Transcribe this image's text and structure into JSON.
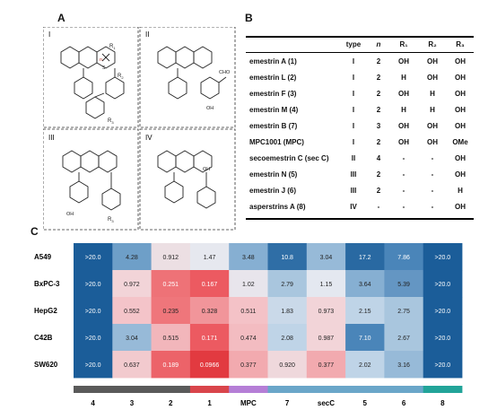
{
  "panel_labels": {
    "a": "A",
    "b": "B",
    "c": "C"
  },
  "panel_a": {
    "box_labels": [
      "I",
      "II",
      "III",
      "IV"
    ],
    "substituent_labels": {
      "r1": "R",
      "r1_sub": "1",
      "r2": "R",
      "r2_sub": "2",
      "r3": "R",
      "r3_sub": "3",
      "n": "n",
      "s": "S",
      "aldehyde": "CHO",
      "hydroxyl": "OH",
      "oh": "OH"
    }
  },
  "panel_b": {
    "headers": {
      "type": "type",
      "n": "n",
      "r1": "R₁",
      "r2": "R₂",
      "r3": "R₃"
    },
    "rows": [
      {
        "name": "emestrin A (1)",
        "type": "I",
        "n": "2",
        "r1": "OH",
        "r2": "OH",
        "r3": "OH"
      },
      {
        "name": "emestrin L (2)",
        "type": "I",
        "n": "2",
        "r1": "H",
        "r2": "OH",
        "r3": "OH"
      },
      {
        "name": "emestrin F (3)",
        "type": "I",
        "n": "2",
        "r1": "OH",
        "r2": "H",
        "r3": "OH"
      },
      {
        "name": "emestrin M (4)",
        "type": "I",
        "n": "2",
        "r1": "H",
        "r2": "H",
        "r3": "OH"
      },
      {
        "name": "emestrin B (7)",
        "type": "I",
        "n": "3",
        "r1": "OH",
        "r2": "OH",
        "r3": "OH"
      },
      {
        "name": "MPC1001 (MPC)",
        "type": "I",
        "n": "2",
        "r1": "OH",
        "r2": "OH",
        "r3": "OMe"
      },
      {
        "name": "secoemestrin C (sec C)",
        "type": "II",
        "n": "4",
        "r1": "-",
        "r2": "-",
        "r3": "OH"
      },
      {
        "name": "emestrin N (5)",
        "type": "III",
        "n": "2",
        "r1": "-",
        "r2": "-",
        "r3": "OH"
      },
      {
        "name": "emestrin J (6)",
        "type": "III",
        "n": "2",
        "r1": "-",
        "r2": "-",
        "r3": "H"
      },
      {
        "name": "asperstrins A (8)",
        "type": "IV",
        "n": "-",
        "r1": "-",
        "r2": "-",
        "r3": "OH"
      }
    ]
  },
  "colors": {
    "dark_blue": "#1b5d99",
    "mid_blue": "#5e98c4",
    "light_blue": "#b2cde2",
    "pale": "#ecdfe3",
    "pink": "#f5c4c8",
    "red": "#ed5a5f",
    "deep_red": "#e23a40",
    "bar_gray": "#5a5a5a",
    "bar_red": "#d9454b",
    "bar_purple": "#b57ed6",
    "bar_blue": "#6aa6c9",
    "bar_teal": "#22a499"
  },
  "chart_data": {
    "type": "heatmap",
    "title": "",
    "rows": [
      "A549",
      "BxPC-3",
      "HepG2",
      "C42B",
      "SW620"
    ],
    "columns": [
      "4",
      "3",
      "2",
      "1",
      "MPC",
      "7",
      "secC",
      "5",
      "6",
      "8"
    ],
    "values": [
      [
        ">20.0",
        "4.28",
        "0.912",
        "1.47",
        "3.48",
        "10.8",
        "3.04",
        "17.2",
        "7.86",
        ">20.0"
      ],
      [
        ">20.0",
        "0.972",
        "0.251",
        "0.167",
        "1.02",
        "2.79",
        "1.15",
        "3.64",
        "5.39",
        ">20.0"
      ],
      [
        ">20.0",
        "0.552",
        "0.235",
        "0.328",
        "0.511",
        "1.83",
        "0.973",
        "2.15",
        "2.75",
        ">20.0"
      ],
      [
        ">20.0",
        "3.04",
        "0.515",
        "0.171",
        "0.474",
        "2.08",
        "0.987",
        "7.10",
        "2.67",
        ">20.0"
      ],
      [
        ">20.0",
        "0.637",
        "0.189",
        "0.0966",
        "0.377",
        "0.920",
        "0.377",
        "2.02",
        "3.16",
        ">20.0"
      ]
    ],
    "cell_colors": [
      [
        "#1b5d99",
        "#6e9fc8",
        "#ecdfe3",
        "#e6e8ef",
        "#86afd2",
        "#2f6ea6",
        "#97bad8",
        "#2969a2",
        "#4a85b9",
        "#1b5d99"
      ],
      [
        "#1b5d99",
        "#f2d4d8",
        "#ee7277",
        "#ec5a61",
        "#e8e5ec",
        "#a9c6de",
        "#e4e8f0",
        "#86afd2",
        "#6496c3",
        "#1b5d99"
      ],
      [
        "#1b5d99",
        "#f4c4c9",
        "#ef767b",
        "#f1959a",
        "#f4c2c7",
        "#cad9e9",
        "#f2d4d8",
        "#bfd4e7",
        "#a9c6de",
        "#1b5d99"
      ],
      [
        "#1b5d99",
        "#97bad8",
        "#f2b6bb",
        "#ec5a61",
        "#f3bcc1",
        "#bfd4e7",
        "#f2d4d8",
        "#4a85b9",
        "#a9c6de",
        "#1b5d99"
      ],
      [
        "#1b5d99",
        "#f2cace",
        "#ec6369",
        "#e23a40",
        "#f2aaaf",
        "#efd8dc",
        "#f2aaaf",
        "#bfd4e7",
        "#97bad8",
        "#1b5d99"
      ]
    ],
    "category_bar": [
      {
        "group": "I-n2",
        "color": "#5a5a5a",
        "columns": [
          "4",
          "3",
          "2"
        ]
      },
      {
        "group": "I-OH",
        "color": "#d9454b",
        "columns": [
          "1"
        ]
      },
      {
        "group": "MPC",
        "color": "#b57ed6",
        "columns": [
          "MPC"
        ]
      },
      {
        "group": "other",
        "color": "#6aa6c9",
        "columns": [
          "7",
          "secC",
          "5",
          "6"
        ]
      },
      {
        "group": "IV",
        "color": "#22a499",
        "columns": [
          "8"
        ]
      }
    ]
  }
}
